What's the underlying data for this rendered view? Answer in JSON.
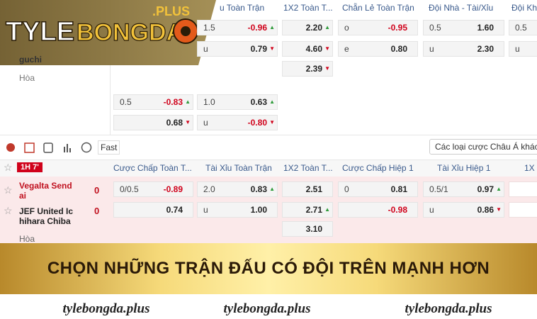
{
  "logo": {
    "brand_left": "TYLE",
    "brand_right": "BONGDA",
    "brand_suffix": ".PLUS"
  },
  "top_section": {
    "headers": [
      "u Toàn Trận",
      "1X2 Toàn T...",
      "Chẵn Lẻ Toàn Trận",
      "Đội Nhà - Tài/Xỉu",
      "Đội Khá"
    ],
    "teams": [
      "guchi",
      "Hòa"
    ],
    "rows": [
      [
        {
          "label": "1.5",
          "odds": "-0.96",
          "trend": "▲"
        },
        {
          "odds": "2.20",
          "trend": "▲"
        },
        {
          "label": "o",
          "odds": "-0.95"
        },
        {
          "label": "0.5",
          "odds": "1.60"
        },
        {
          "label": "0.5"
        }
      ],
      [
        {
          "label": "u",
          "odds": "0.79",
          "trend": "▼"
        },
        {
          "odds": "4.60",
          "trend": "▼"
        },
        {
          "label": "e",
          "odds": "0.80"
        },
        {
          "label": "u",
          "odds": "2.30"
        },
        {
          "label": "u"
        }
      ],
      [
        null,
        {
          "odds": "2.39",
          "trend": "▼"
        },
        null,
        null,
        null
      ]
    ],
    "extra_rows": [
      [
        {
          "label": "0.5",
          "odds": "-0.83",
          "trend": "▲"
        },
        {
          "label": "1.0",
          "odds": "0.63",
          "trend": "▲"
        }
      ],
      [
        {
          "odds": "0.68",
          "trend": "▼"
        },
        {
          "label": "u",
          "odds": "-0.80",
          "trend": "▼"
        }
      ]
    ]
  },
  "toolbar": {
    "fast": "Fast",
    "dropdown": "Các loại cược Châu Á khác"
  },
  "match": {
    "status": "1H 7'",
    "headers": [
      "Cược Chấp Toàn T...",
      "Tài Xỉu Toàn Trận",
      "1X2 Toàn T...",
      "Cược Chấp Hiệp 1",
      "Tài Xỉu Hiệp 1",
      "1X"
    ],
    "home": {
      "name": "Vegalta Sendai",
      "score": "0"
    },
    "away": {
      "name": "JEF United Ichihara Chiba",
      "score": "0"
    },
    "draw": "Hòa",
    "rows": [
      [
        {
          "label": "0/0.5",
          "odds": "-0.89"
        },
        {
          "label": "2.0",
          "odds": "0.83",
          "trend": "▲"
        },
        {
          "odds": "2.51"
        },
        {
          "label": "0",
          "odds": "0.81"
        },
        {
          "label": "0.5/1",
          "odds": "0.97",
          "trend": "▲"
        },
        null
      ],
      [
        {
          "odds": "0.74"
        },
        {
          "label": "u",
          "odds": "1.00"
        },
        {
          "odds": "2.71",
          "trend": "▲"
        },
        {
          "odds": "-0.98"
        },
        {
          "label": "u",
          "odds": "0.86",
          "trend": "▼"
        },
        null
      ],
      [
        null,
        null,
        {
          "odds": "3.10"
        },
        null,
        null,
        null
      ]
    ]
  },
  "banner": {
    "headline": "CHỌN NHỮNG TRẬN ĐẤU CÓ ĐỘI TRÊN MẠNH HƠN"
  },
  "footer": {
    "links": [
      "tylebongda.plus",
      "tylebongda.plus",
      "tylebongda.plus"
    ]
  }
}
